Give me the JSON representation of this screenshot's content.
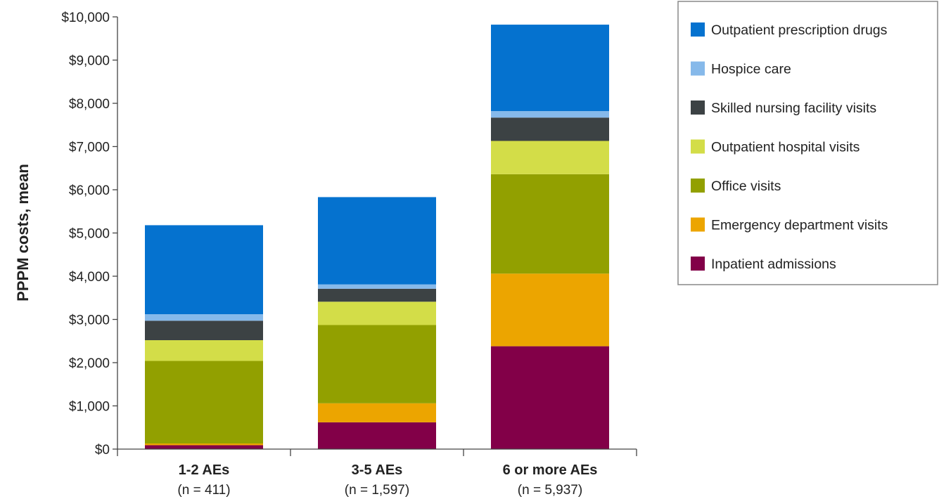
{
  "chart_data": {
    "type": "bar",
    "stacked": true,
    "ylabel": "PPPM costs, mean",
    "xlabel": "",
    "ylim": [
      0,
      10000
    ],
    "yticks": [
      0,
      1000,
      2000,
      3000,
      4000,
      5000,
      6000,
      7000,
      8000,
      9000,
      10000
    ],
    "ytick_labels": [
      "$0",
      "$1,000",
      "$2,000",
      "$3,000",
      "$4,000",
      "$5,000",
      "$6,000",
      "$7,000",
      "$8,000",
      "$9,000",
      "$10,000"
    ],
    "categories": [
      "1-2 AEs",
      "3-5 AEs",
      "6 or more AEs"
    ],
    "category_sublabels": [
      "(n = 411)",
      "(n = 1,597)",
      "(n = 5,937)"
    ],
    "legend_position": "top-right",
    "grid": false,
    "series": [
      {
        "name": "Inpatient admissions",
        "color": "#820048",
        "values": [
          90,
          620,
          2380
        ]
      },
      {
        "name": "Emergency department visits",
        "color": "#eca500",
        "values": [
          40,
          440,
          1680
        ]
      },
      {
        "name": "Office visits",
        "color": "#92a000",
        "values": [
          1910,
          1810,
          2300
        ]
      },
      {
        "name": "Outpatient hospital visits",
        "color": "#d3dd48",
        "values": [
          480,
          540,
          770
        ]
      },
      {
        "name": "Skilled nursing facility visits",
        "color": "#3c4244",
        "values": [
          450,
          300,
          540
        ]
      },
      {
        "name": "Hospice care",
        "color": "#86b9ea",
        "values": [
          150,
          100,
          150
        ]
      },
      {
        "name": "Outpatient prescription drugs",
        "color": "#0572cf",
        "values": [
          2060,
          2020,
          2000
        ]
      }
    ],
    "legend_order": [
      "Outpatient prescription drugs",
      "Hospice care",
      "Skilled nursing facility visits",
      "Outpatient hospital visits",
      "Office visits",
      "Emergency department visits",
      "Inpatient admissions"
    ]
  }
}
